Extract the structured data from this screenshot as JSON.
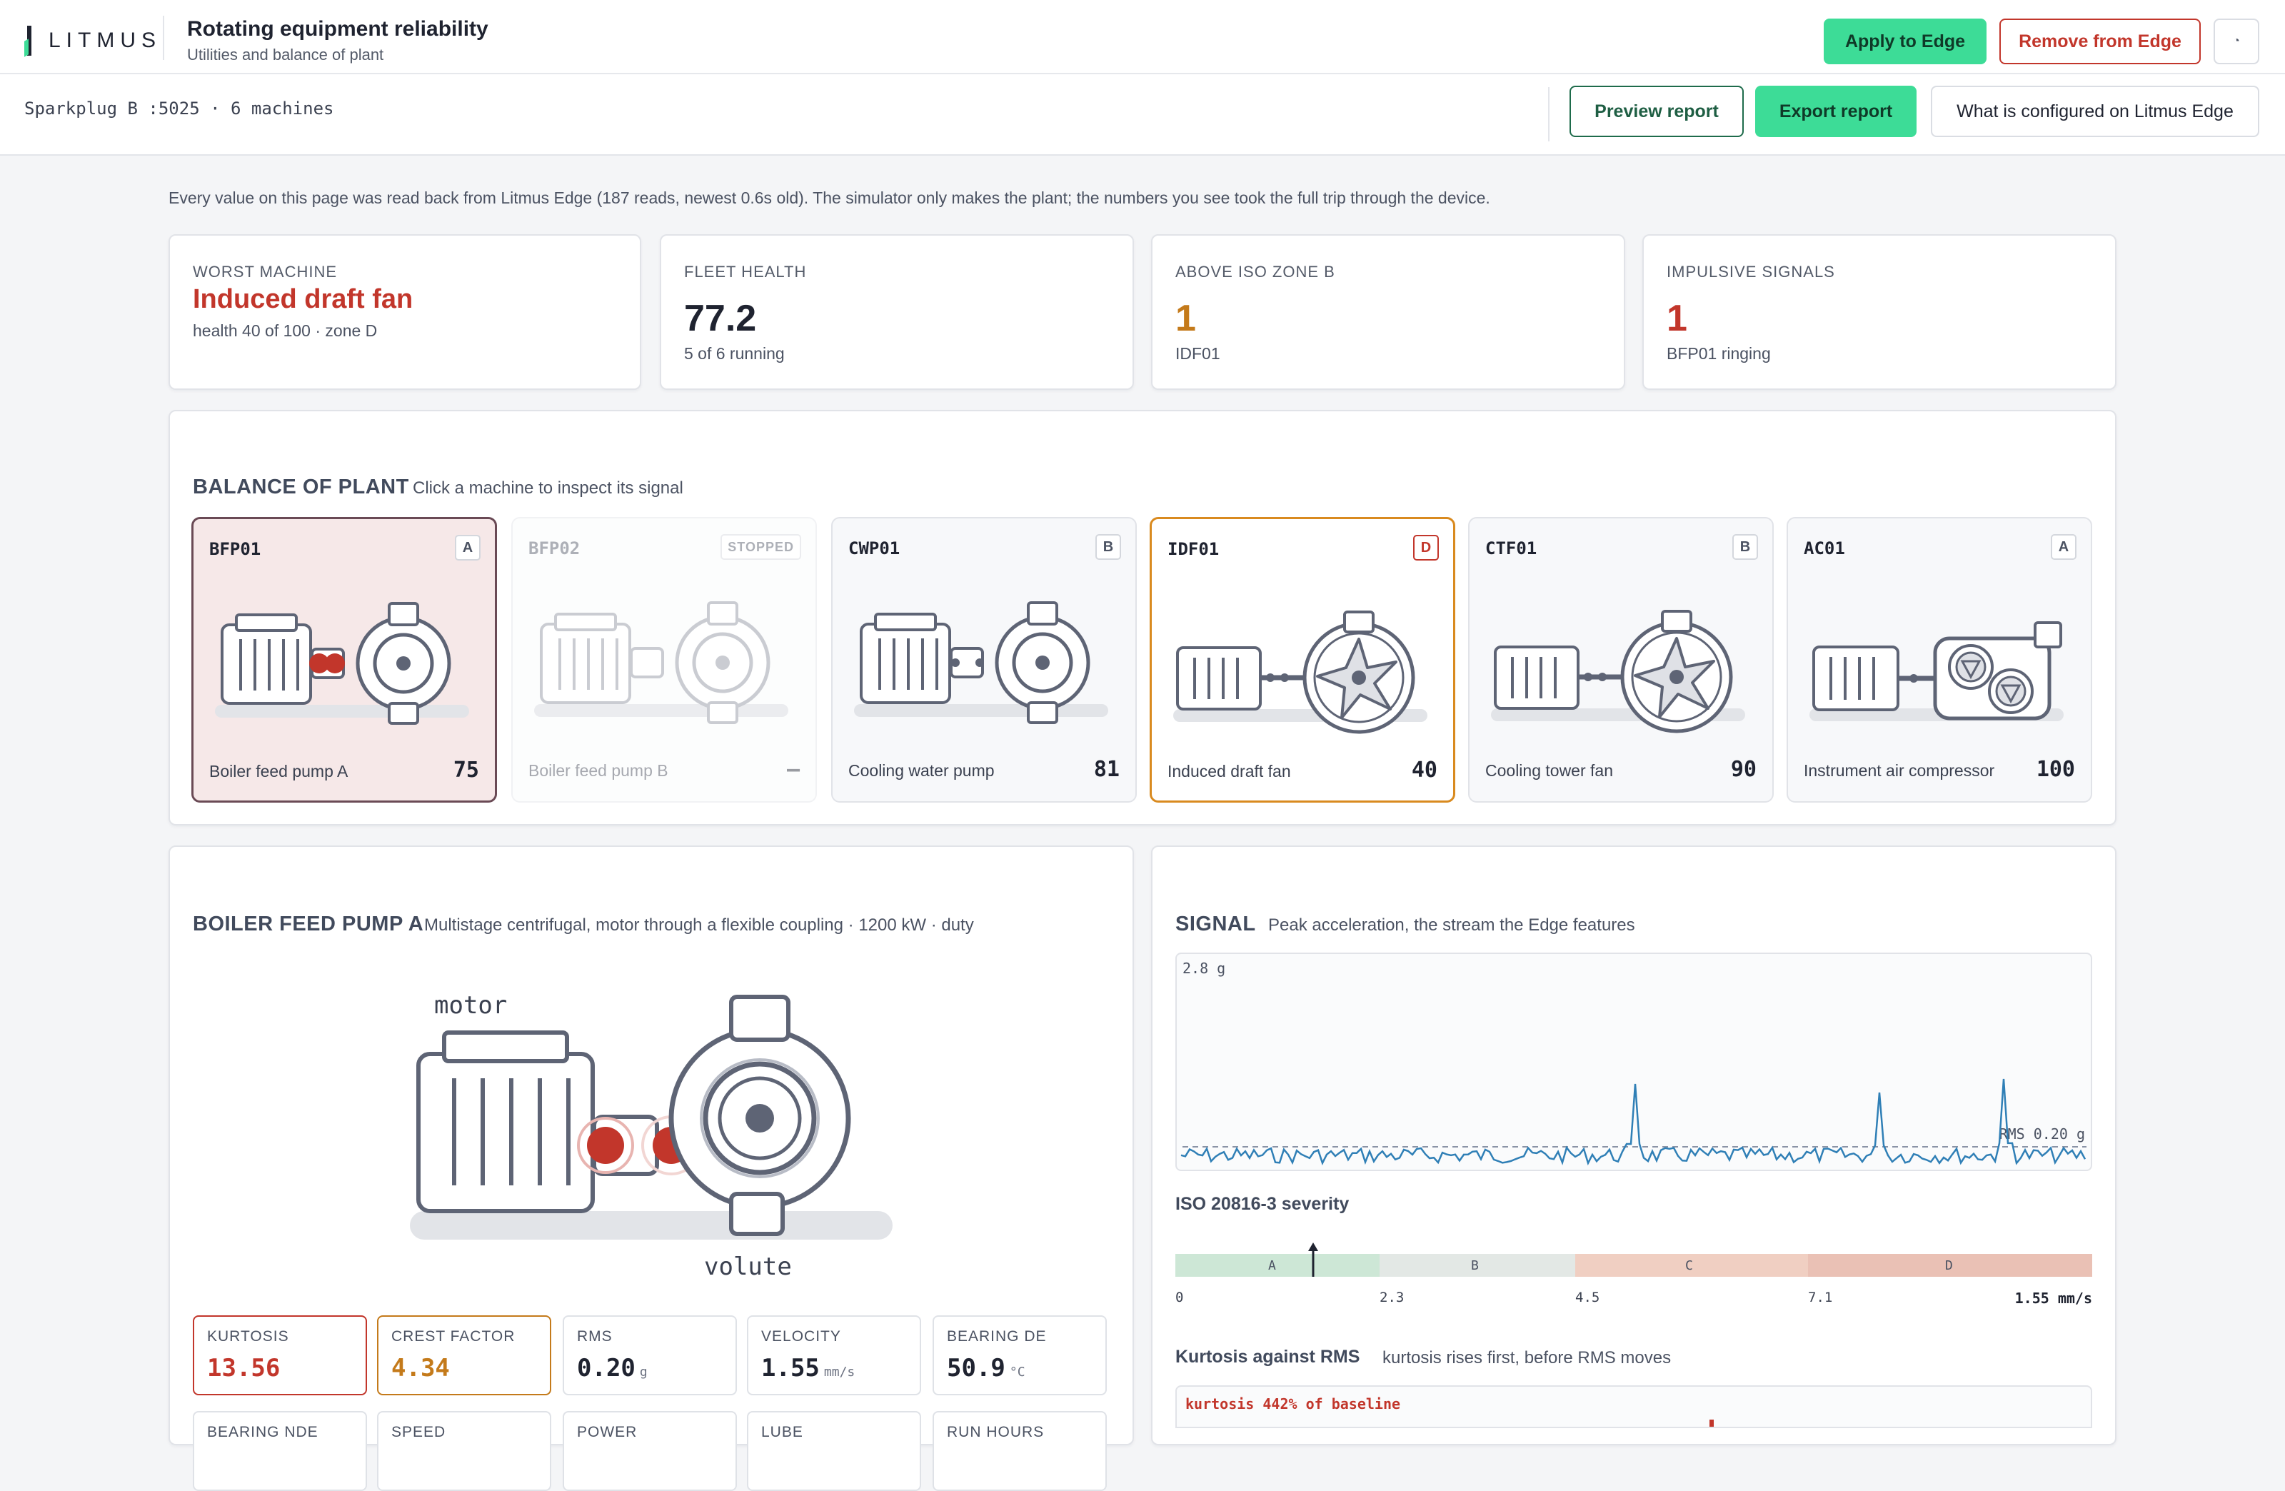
{
  "header": {
    "logo_text": "LITMUS",
    "title": "Rotating equipment reliability",
    "subtitle": "Utilities and balance of plant",
    "apply_label": "Apply to Edge",
    "remove_label": "Remove from Edge",
    "theme_icon": "theme-toggle-icon"
  },
  "subbar": {
    "connection": "Sparkplug B :5025 · 6 machines",
    "preview_label": "Preview report",
    "export_label": "Export report",
    "configured_label": "What is configured on Litmus Edge"
  },
  "notice": "Every value on this page was read back from Litmus Edge (187 reads, newest 0.6s old). The simulator only makes the plant; the numbers you see took the full trip through the device.",
  "stats": [
    {
      "label": "WORST MACHINE",
      "value": "Induced draft fan",
      "sub": "health 40 of 100 · zone D",
      "color": "#c2362b"
    },
    {
      "label": "FLEET HEALTH",
      "value": "77.2",
      "sub": "5 of 6 running",
      "color": "#1f2330"
    },
    {
      "label": "ABOVE ISO ZONE B",
      "value": "1",
      "sub": "IDF01",
      "color": "#c47a1a"
    },
    {
      "label": "IMPULSIVE SIGNALS",
      "value": "1",
      "sub": "BFP01 ringing",
      "color": "#c2362b"
    }
  ],
  "plant": {
    "title": "BALANCE OF PLANT",
    "hint": "Click a machine to inspect its signal",
    "machines": [
      {
        "id": "BFP01",
        "zone": "A",
        "name": "Boiler feed pump A",
        "score": "75",
        "type": "pump",
        "state": "selected"
      },
      {
        "id": "BFP02",
        "zone": "STOPPED",
        "name": "Boiler feed pump B",
        "score": "–",
        "type": "pump",
        "state": "stopped"
      },
      {
        "id": "CWP01",
        "zone": "B",
        "name": "Cooling water pump",
        "score": "81",
        "type": "pump",
        "state": "normal"
      },
      {
        "id": "IDF01",
        "zone": "D",
        "name": "Induced draft fan",
        "score": "40",
        "type": "fan",
        "state": "alarm"
      },
      {
        "id": "CTF01",
        "zone": "B",
        "name": "Cooling tower fan",
        "score": "90",
        "type": "fan",
        "state": "normal"
      },
      {
        "id": "AC01",
        "zone": "A",
        "name": "Instrument air compressor",
        "score": "100",
        "type": "compressor",
        "state": "normal"
      }
    ]
  },
  "detail": {
    "title": "BOILER FEED PUMP A",
    "desc": "Multistage centrifugal, motor through a flexible coupling · 1200 kW · duty",
    "motor_label": "motor",
    "volute_label": "volute",
    "metrics": [
      {
        "label": "KURTOSIS",
        "value": "13.56",
        "unit": "",
        "color": "#c2362b",
        "border": "#c2362b"
      },
      {
        "label": "CREST FACTOR",
        "value": "4.34",
        "unit": "",
        "color": "#c47a1a",
        "border": "#c47a1a"
      },
      {
        "label": "RMS",
        "value": "0.20",
        "unit": "g",
        "color": "#1f2330",
        "border": "#dfe2e7"
      },
      {
        "label": "VELOCITY",
        "value": "1.55",
        "unit": "mm/s",
        "color": "#1f2330",
        "border": "#dfe2e7"
      },
      {
        "label": "BEARING DE",
        "value": "50.9",
        "unit": "°C",
        "color": "#1f2330",
        "border": "#dfe2e7"
      }
    ],
    "metrics_row2": [
      "BEARING NDE",
      "SPEED",
      "POWER",
      "LUBE",
      "RUN HOURS"
    ]
  },
  "signal": {
    "title": "SIGNAL",
    "desc": "Peak acceleration, the stream the Edge features",
    "ymax_label": "2.8 g",
    "rms_label": "RMS 0.20 g",
    "iso_title": "ISO 20816-3 severity",
    "iso_zones": [
      "A",
      "B",
      "C",
      "D"
    ],
    "iso_ticks": [
      "0",
      "2.3",
      "4.5",
      "7.1"
    ],
    "iso_value": "1.55 mm/s",
    "iso_value_num": 1.55,
    "kurt_title": "Kurtosis against RMS",
    "kurt_desc": "kurtosis rises first, before RMS moves",
    "kurt_label": "kurtosis 442% of baseline"
  }
}
